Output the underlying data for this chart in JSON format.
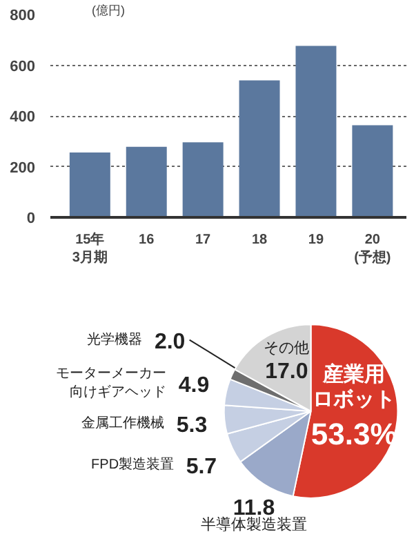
{
  "chart_data": [
    {
      "type": "bar",
      "ylabel": "(億円)",
      "categories": [
        "15年\n3月期",
        "16",
        "17",
        "18",
        "19",
        "20\n(予想)"
      ],
      "values": [
        256,
        278,
        296,
        540,
        676,
        363
      ],
      "color": "#5b789e",
      "ylim": [
        0,
        800
      ],
      "yticks": [
        0,
        200,
        400,
        600,
        800
      ],
      "grid": "y"
    },
    {
      "type": "pie",
      "categories": [
        "産業用ロボット",
        "半導体製造装置",
        "FPD製造装置",
        "金属工作機械",
        "モーターメーカー向けギアヘッド",
        "光学機器",
        "その他"
      ],
      "values": [
        53.3,
        11.8,
        5.7,
        5.3,
        4.9,
        2.0,
        17.0
      ],
      "colors": [
        "#d9392b",
        "#9aa9c9",
        "#c5cfe3",
        "#c5cfe3",
        "#c5cfe3",
        "#6e6e6e",
        "#d4d4d4"
      ],
      "value_labels": [
        "53.3%",
        "11.8",
        "5.7",
        "5.3",
        "4.9",
        "2.0",
        "17.0"
      ]
    }
  ]
}
